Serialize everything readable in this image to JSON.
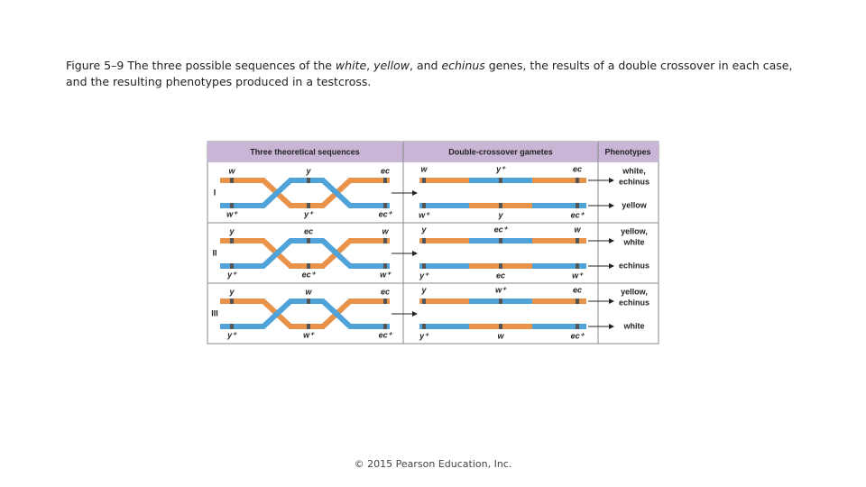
{
  "caption": [
    "Figure 5–9 The three possible sequences of the ",
    "white",
    ", ",
    "yellow",
    ", and ",
    "echinus",
    " genes, the results of a double crossover in each case, and the resulting phenotypes produced in a testcross."
  ],
  "figure": {
    "headers": [
      "Three theoretical sequences",
      "Double-crossover gametes",
      "Phenotypes"
    ],
    "sections": [
      {
        "numeral": "I",
        "top": [
          "w",
          "y",
          "ec"
        ],
        "bottom": [
          "w⁺",
          "y⁺",
          "ec⁺"
        ],
        "gamete1": [
          "w",
          "y⁺",
          "ec"
        ],
        "gamete2": [
          "w⁺",
          "y",
          "ec⁺"
        ],
        "phenotypes": [
          [
            "white,",
            "echinus"
          ],
          [
            "yellow"
          ]
        ]
      },
      {
        "numeral": "II",
        "top": [
          "y",
          "ec",
          "w"
        ],
        "bottom": [
          "y⁺",
          "ec⁺",
          "w⁺"
        ],
        "gamete1": [
          "y",
          "ec⁺",
          "w"
        ],
        "gamete2": [
          "y⁺",
          "ec",
          "w⁺"
        ],
        "phenotypes": [
          [
            "yellow,",
            "white"
          ],
          [
            "echinus"
          ]
        ]
      },
      {
        "numeral": "III",
        "top": [
          "y",
          "w",
          "ec"
        ],
        "bottom": [
          "y⁺",
          "w⁺",
          "ec⁺"
        ],
        "gamete1": [
          "y",
          "w⁺",
          "ec"
        ],
        "gamete2": [
          "y⁺",
          "w",
          "ec⁺"
        ],
        "phenotypes": [
          [
            "yellow,",
            "echinus"
          ],
          [
            "white"
          ]
        ]
      }
    ]
  },
  "footer": "© 2015 Pearson Education, Inc."
}
